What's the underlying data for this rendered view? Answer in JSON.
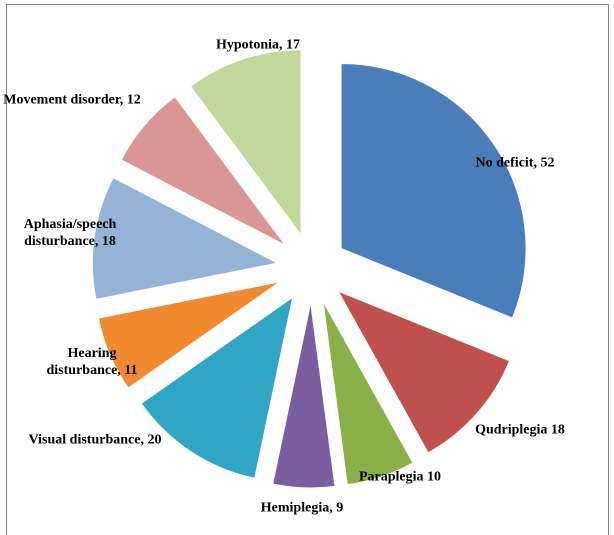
{
  "chart_data": {
    "type": "pie",
    "values": [
      52,
      18,
      10,
      9,
      20,
      11,
      18,
      12,
      17
    ],
    "value_labels": [
      "No deficit, 52",
      "Qudriplegia 18",
      "Paraplegia 10",
      "Hemiplegia, 9",
      "Visual disturbance, 20",
      "Hearing\ndisturbance, 11",
      "Aphasia/speech\ndisturbance, 18",
      "Movement disorder, 12",
      "Hypotonia, 17"
    ],
    "colors": [
      "#4a7ebb",
      "#c0504d",
      "#8bb04a",
      "#7a5fa0",
      "#31a5c4",
      "#f18a2f",
      "#95b3d7",
      "#d99694",
      "#c3d69b"
    ]
  }
}
